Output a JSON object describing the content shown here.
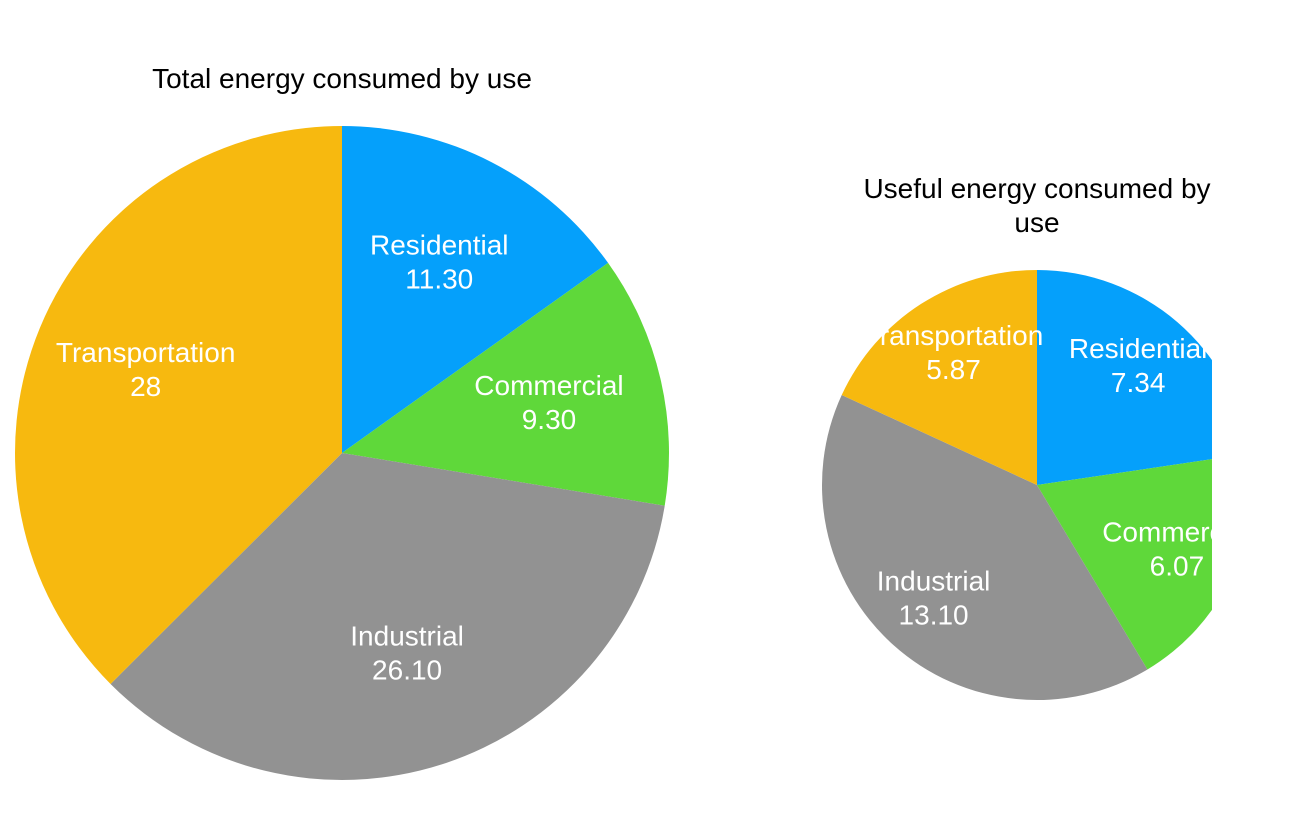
{
  "chart_data": [
    {
      "type": "pie",
      "title": "Total energy consumed by use",
      "categories": [
        "Residential",
        "Commercial",
        "Industrial",
        "Transportation"
      ],
      "values": [
        11.3,
        9.3,
        26.1,
        28
      ],
      "value_labels": [
        "11.30",
        "9.30",
        "26.10",
        "28"
      ],
      "colors": [
        "#05a0fb",
        "#5fd83a",
        "#929292",
        "#f7b90f"
      ]
    },
    {
      "type": "pie",
      "title": "Useful energy consumed by use",
      "categories": [
        "Residential",
        "Commercial",
        "Industrial",
        "Transportation"
      ],
      "values": [
        7.34,
        6.07,
        13.1,
        5.87
      ],
      "value_labels": [
        "7.34",
        "6.07",
        "13.10",
        "5.87"
      ],
      "colors": [
        "#05a0fb",
        "#5fd83a",
        "#929292",
        "#f7b90f"
      ]
    }
  ]
}
